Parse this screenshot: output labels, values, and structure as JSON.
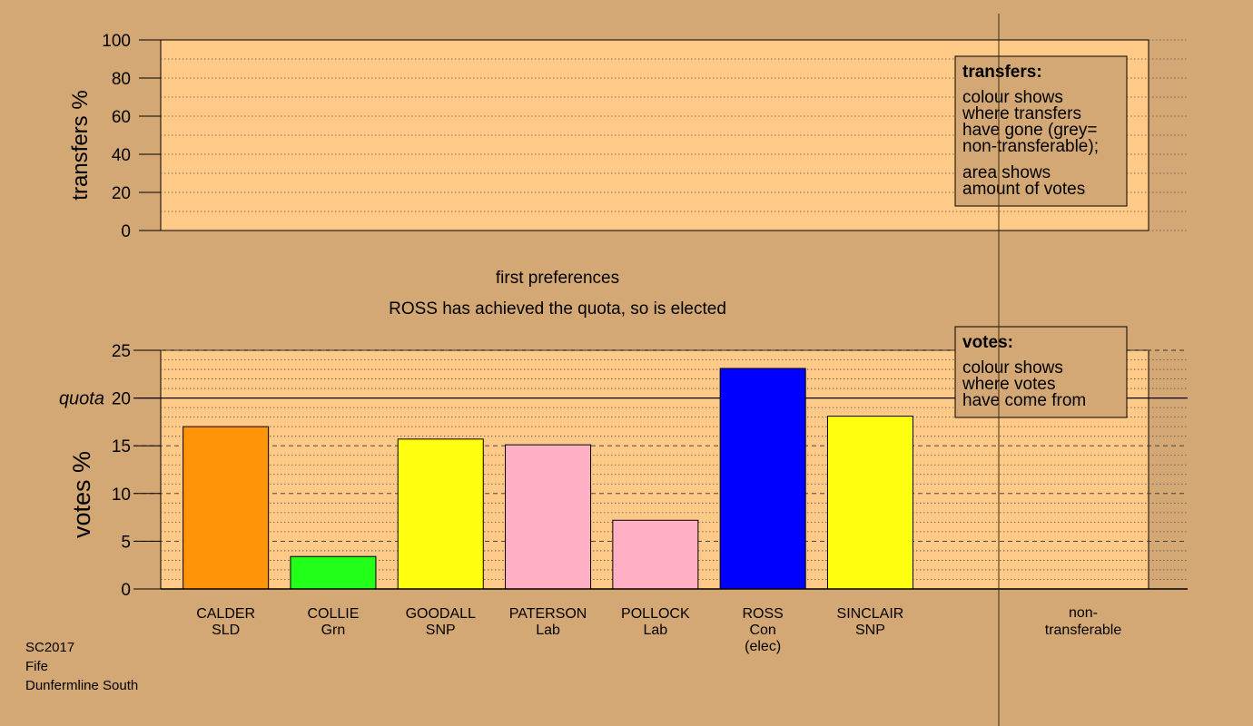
{
  "transfers_panel": {
    "ylabel": "transfers %",
    "ylim": [
      0,
      100
    ],
    "ticks": [
      "0",
      "20",
      "40",
      "60",
      "80",
      "100"
    ],
    "legend": {
      "title": "transfers:",
      "lines": [
        "colour shows",
        "where transfers",
        "have gone (grey=",
        "non-transferable);",
        "area shows",
        "amount of votes"
      ]
    }
  },
  "stage": {
    "title": "first preferences",
    "subtitle": "ROSS has achieved the quota, so is elected"
  },
  "votes_legend": {
    "title": "votes:",
    "lines": [
      "colour shows",
      "where votes",
      "have come from"
    ]
  },
  "footer": {
    "lines": [
      "SC2017",
      "Fife",
      "Dunfermline South"
    ]
  },
  "non_transferable_label": [
    "non-",
    "transferable"
  ],
  "chart_data": {
    "type": "bar",
    "ylabel": "votes %",
    "ylim": [
      0,
      25
    ],
    "ticks": [
      "0",
      "5",
      "10",
      "15",
      "20",
      "25"
    ],
    "quota": 20,
    "quota_label": "quota",
    "categories": [
      {
        "name": "CALDER",
        "party": "SLD",
        "extra": ""
      },
      {
        "name": "COLLIE",
        "party": "Grn",
        "extra": ""
      },
      {
        "name": "GOODALL",
        "party": "SNP",
        "extra": ""
      },
      {
        "name": "PATERSON",
        "party": "Lab",
        "extra": ""
      },
      {
        "name": "POLLOCK",
        "party": "Lab",
        "extra": ""
      },
      {
        "name": "ROSS",
        "party": "Con",
        "extra": "(elec)"
      },
      {
        "name": "SINCLAIR",
        "party": "SNP",
        "extra": ""
      }
    ],
    "values": [
      17.0,
      3.4,
      15.7,
      15.1,
      7.2,
      23.1,
      18.1
    ],
    "colors": [
      "#ff9408",
      "#22ff18",
      "#ffff10",
      "#ffb0c4",
      "#ffb0c4",
      "#0000ff",
      "#ffff10"
    ]
  }
}
